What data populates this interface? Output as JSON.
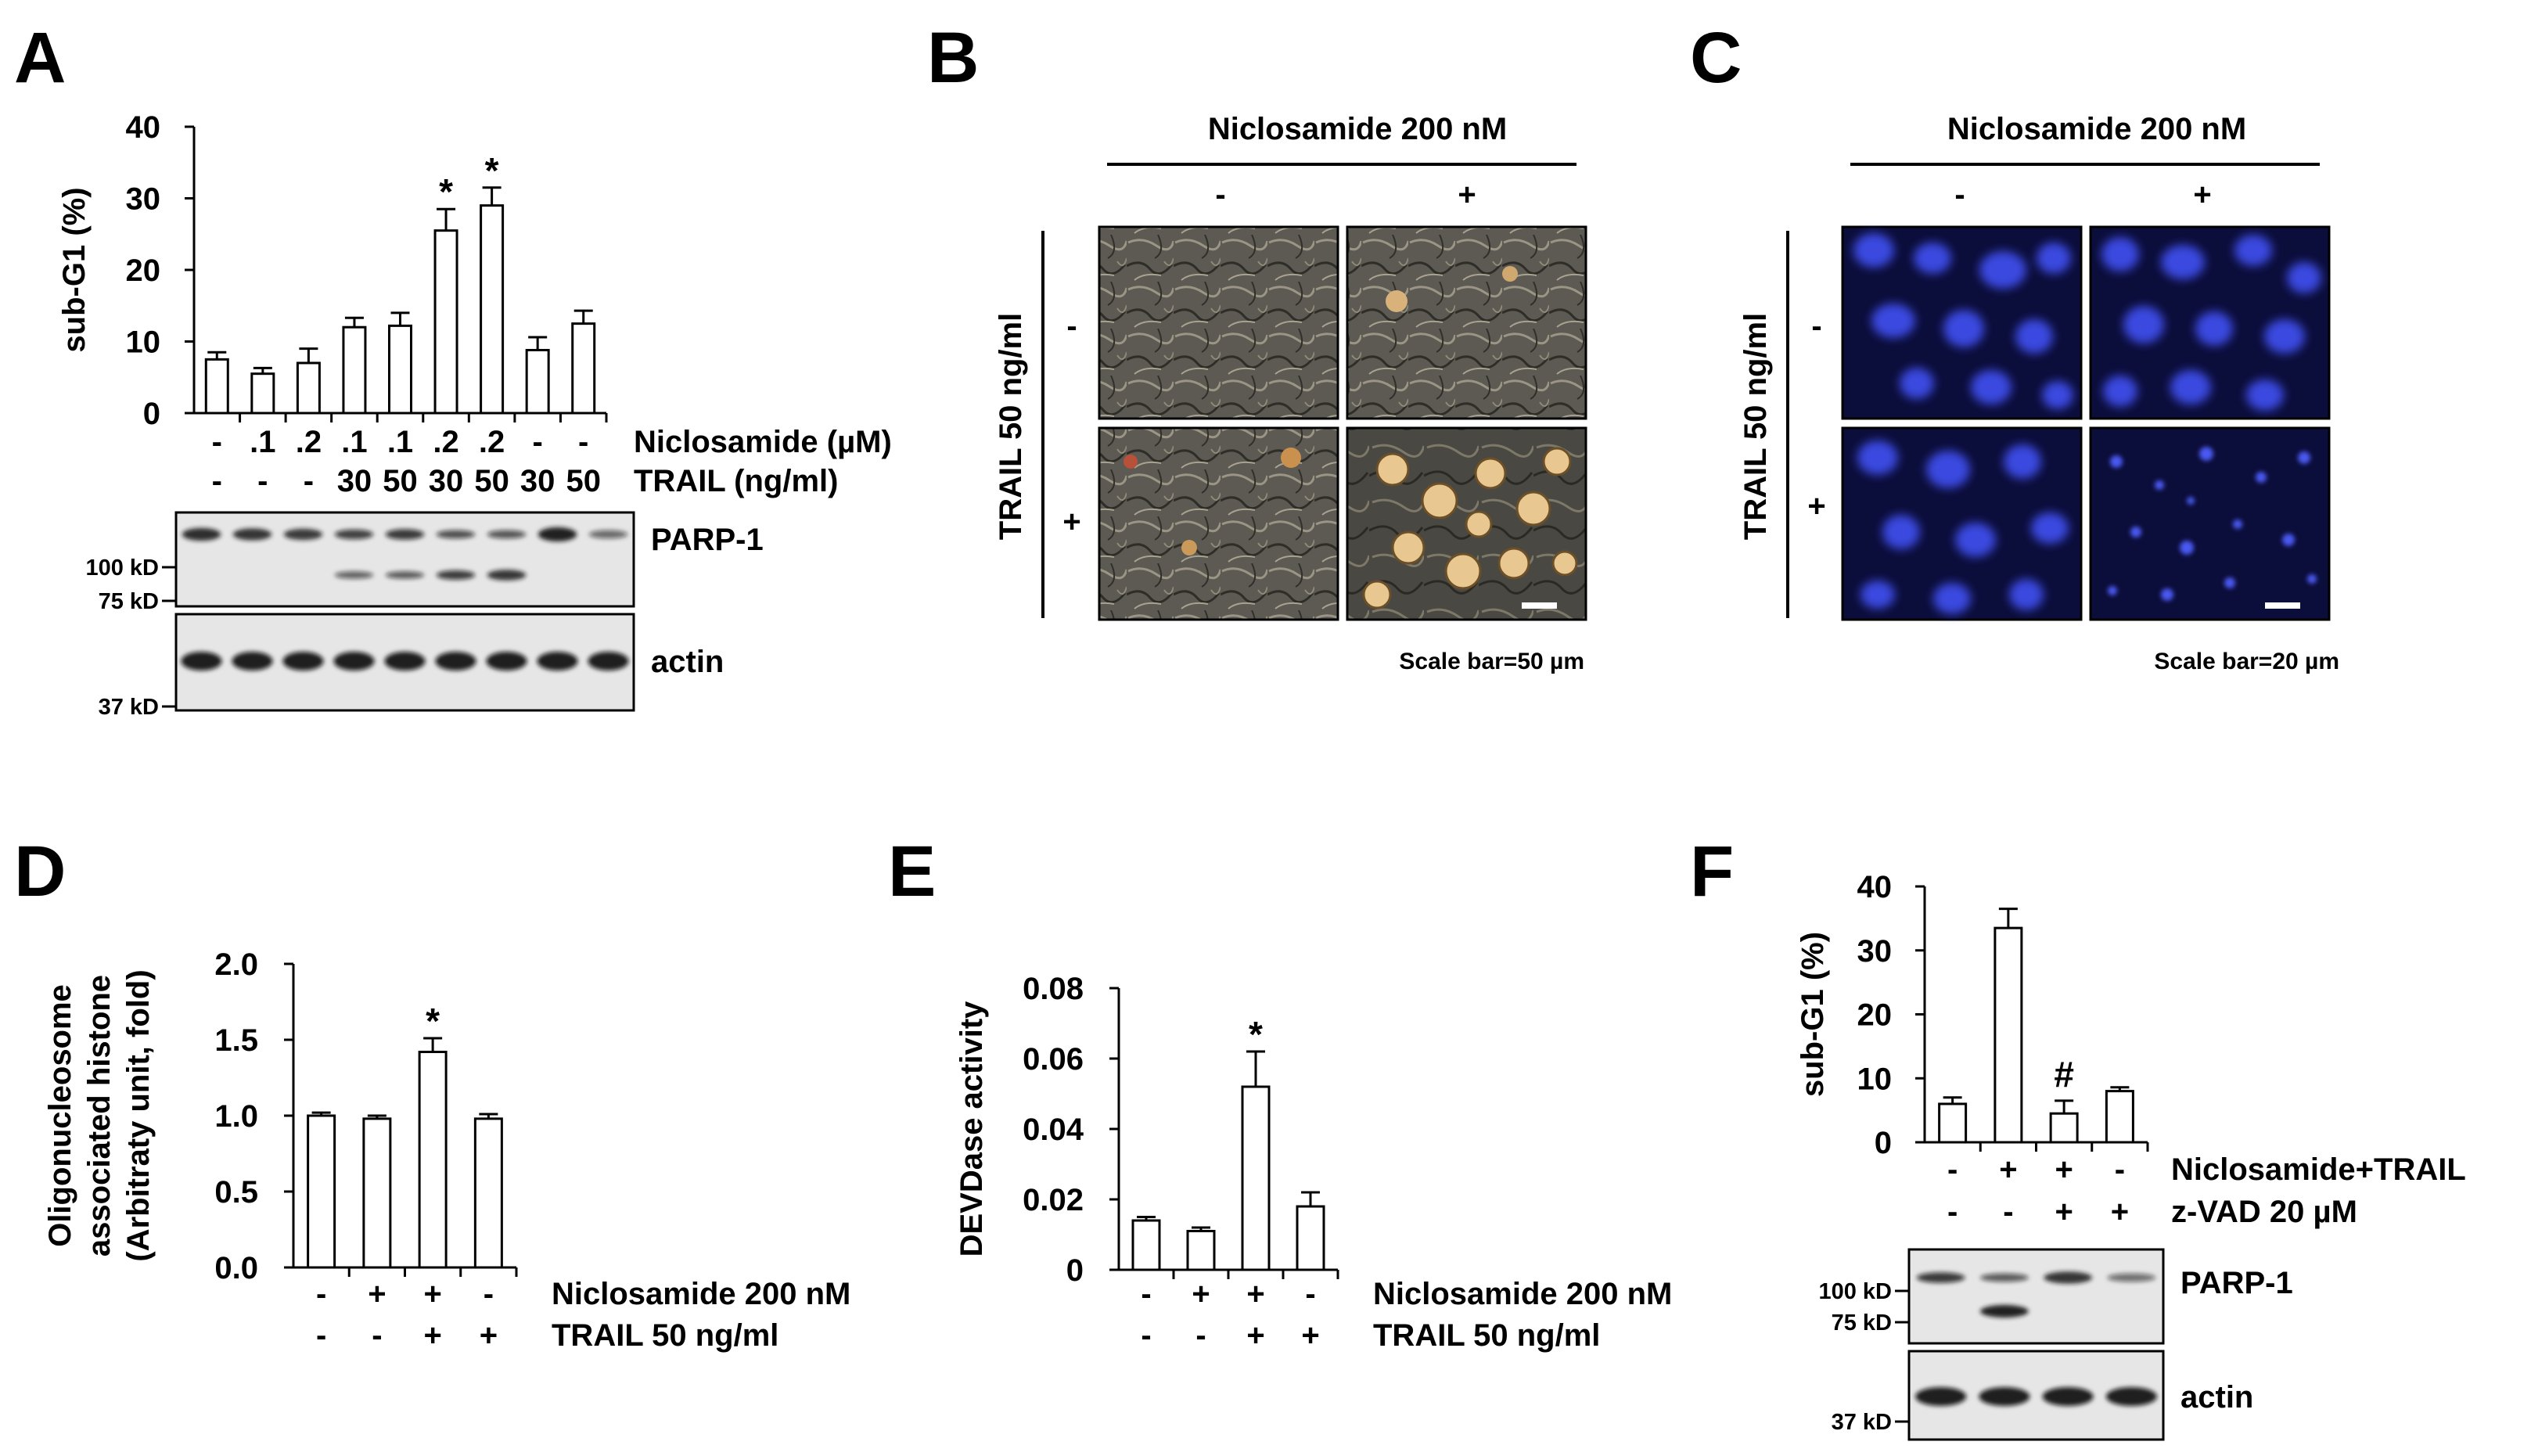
{
  "panels": {
    "A": {
      "letter": "A"
    },
    "B": {
      "letter": "B",
      "header": "Niclosamide 200 nM",
      "col_labels": [
        "-",
        "+"
      ],
      "row_title": "TRAIL 50 ng/ml",
      "row_labels": [
        "-",
        "+"
      ],
      "scale_bar": "Scale bar=50 µm"
    },
    "C": {
      "letter": "C",
      "header": "Niclosamide 200 nM",
      "col_labels": [
        "-",
        "+"
      ],
      "row_title": "TRAIL 50 ng/ml",
      "row_labels": [
        "-",
        "+"
      ],
      "scale_bar": "Scale bar=20 µm"
    },
    "D": {
      "letter": "D"
    },
    "E": {
      "letter": "E"
    },
    "F": {
      "letter": "F"
    }
  },
  "chart_data": [
    {
      "id": "A",
      "type": "bar",
      "ylabel": "sub-G1 (%)",
      "ylim": [
        0,
        40
      ],
      "yticks": [
        "0",
        "10",
        "20",
        "30",
        "40"
      ],
      "values": [
        7.5,
        5.5,
        7,
        12,
        12.2,
        25.5,
        29,
        8.8,
        12.5
      ],
      "errors": [
        1,
        0.8,
        2,
        1.3,
        1.8,
        3,
        2.5,
        1.8,
        1.8
      ],
      "significance": [
        "",
        "",
        "",
        "",
        "",
        "*",
        "*",
        "",
        ""
      ],
      "conditions": [
        {
          "label": "Niclosamide (µM)",
          "values": [
            "-",
            ".1",
            ".2",
            ".1",
            ".1",
            ".2",
            ".2",
            "-",
            "-"
          ]
        },
        {
          "label": "TRAIL (ng/ml)",
          "values": [
            "-",
            "-",
            "-",
            "30",
            "50",
            "30",
            "50",
            "30",
            "50"
          ]
        }
      ],
      "blots": [
        {
          "label": "PARP-1",
          "markers": [
            "100 kD",
            "75 kD"
          ]
        },
        {
          "label": "actin",
          "markers": [
            "37 kD"
          ]
        }
      ]
    },
    {
      "id": "D",
      "type": "bar",
      "ylabel_lines": [
        "Oligonucleosome",
        "associated histone",
        "(Arbitraty unit, fold)"
      ],
      "ylim": [
        0,
        2
      ],
      "yticks": [
        "0.0",
        "0.5",
        "1.0",
        "1.5",
        "2.0"
      ],
      "values": [
        1.0,
        0.98,
        1.42,
        0.98
      ],
      "errors": [
        0.02,
        0.02,
        0.09,
        0.03
      ],
      "significance": [
        "",
        "",
        "*",
        ""
      ],
      "conditions": [
        {
          "label": "Niclosamide 200 nM",
          "values": [
            "-",
            "+",
            "+",
            "-"
          ]
        },
        {
          "label": "TRAIL 50 ng/ml",
          "values": [
            "-",
            "-",
            "+",
            "+"
          ]
        }
      ]
    },
    {
      "id": "E",
      "type": "bar",
      "ylabel": "DEVDase activity",
      "ylim": [
        0,
        0.08
      ],
      "yticks": [
        "0",
        "0.02",
        "0.04",
        "0.06",
        "0.08"
      ],
      "values": [
        0.014,
        0.011,
        0.052,
        0.018
      ],
      "errors": [
        0.001,
        0.001,
        0.01,
        0.004
      ],
      "significance": [
        "",
        "",
        "*",
        ""
      ],
      "conditions": [
        {
          "label": "Niclosamide 200 nM",
          "values": [
            "-",
            "+",
            "+",
            "-"
          ]
        },
        {
          "label": "TRAIL 50 ng/ml",
          "values": [
            "-",
            "-",
            "+",
            "+"
          ]
        }
      ]
    },
    {
      "id": "F",
      "type": "bar",
      "ylabel": "sub-G1 (%)",
      "ylim": [
        0,
        40
      ],
      "yticks": [
        "0",
        "10",
        "20",
        "30",
        "40"
      ],
      "values": [
        6,
        33.5,
        4.5,
        8
      ],
      "errors": [
        1,
        3,
        2,
        0.6
      ],
      "significance": [
        "",
        "",
        "#",
        ""
      ],
      "conditions": [
        {
          "label": "Niclosamide+TRAIL",
          "values": [
            "-",
            "+",
            "+",
            "-"
          ]
        },
        {
          "label": "z-VAD 20 µM",
          "values": [
            "-",
            "-",
            "+",
            "+"
          ]
        }
      ],
      "blots": [
        {
          "label": "PARP-1",
          "markers": [
            "100 kD",
            "75 kD"
          ]
        },
        {
          "label": "actin",
          "markers": [
            "37 kD"
          ]
        }
      ]
    }
  ]
}
